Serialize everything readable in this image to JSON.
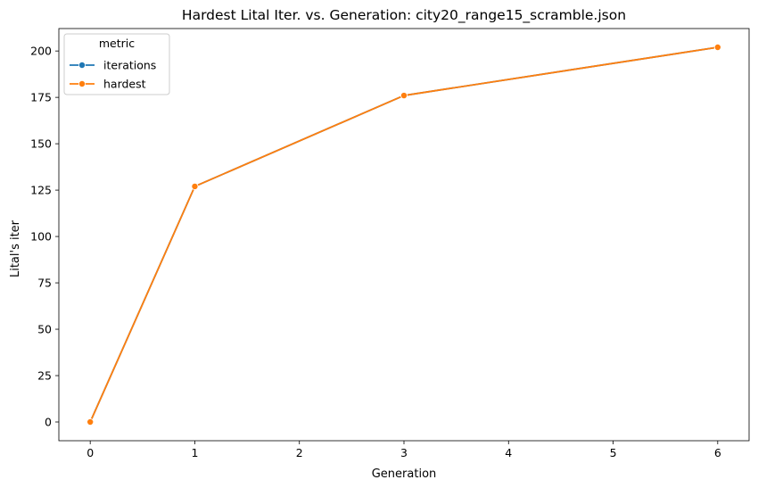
{
  "chart_data": {
    "type": "line",
    "title": "Hardest Lital Iter. vs. Generation: city20_range15_scramble.json",
    "xlabel": "Generation",
    "ylabel": "Lital's iter",
    "x": [
      0,
      1,
      3,
      6
    ],
    "xlim": [
      -0.3,
      6.3
    ],
    "ylim": [
      -10.1,
      212.1
    ],
    "xticks": [
      0,
      1,
      2,
      3,
      4,
      5,
      6
    ],
    "yticks": [
      0,
      25,
      50,
      75,
      100,
      125,
      150,
      175,
      200
    ],
    "grid": false,
    "legend": {
      "title": "metric",
      "placement": "top-left"
    },
    "series": [
      {
        "name": "iterations",
        "values": [
          0,
          127,
          176,
          202
        ],
        "color": "#1f77b4"
      },
      {
        "name": "hardest",
        "values": [
          0,
          127,
          176,
          202
        ],
        "color": "#ff7f0e"
      }
    ]
  }
}
